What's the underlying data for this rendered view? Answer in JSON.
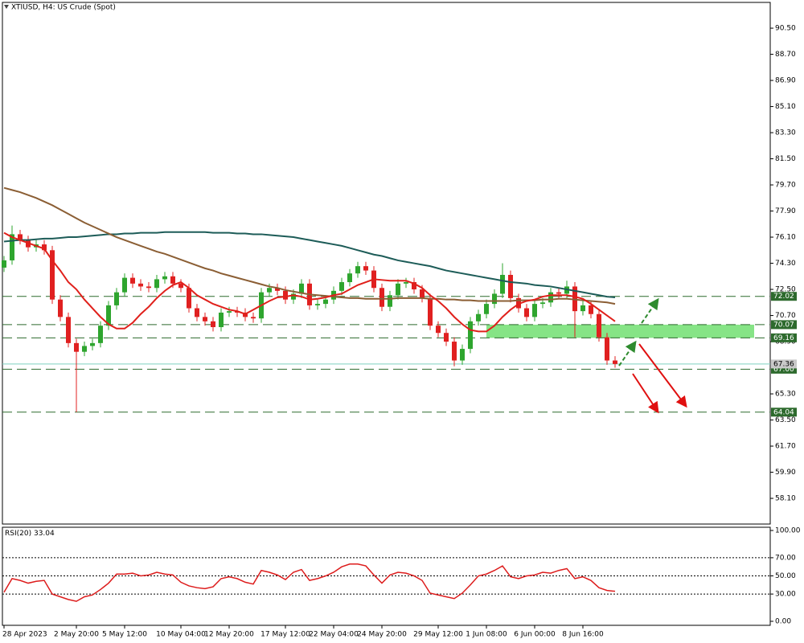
{
  "chart_data": {
    "type": "candlestick",
    "title": "XTIUSD, H4:  US Crude (Spot)",
    "categories": [
      "28 Apr 2023",
      null,
      null,
      null,
      null,
      null,
      null,
      null,
      null,
      "2 May 20:00",
      null,
      null,
      null,
      null,
      null,
      "5 May 12:00",
      null,
      null,
      null,
      null,
      null,
      null,
      "10 May 04:00",
      null,
      null,
      null,
      null,
      null,
      "12 May 20:00",
      null,
      null,
      null,
      null,
      null,
      null,
      "17 May 12:00",
      null,
      null,
      null,
      null,
      null,
      "22 May 04:00",
      null,
      null,
      null,
      null,
      null,
      "24 May 20:00",
      null,
      null,
      null,
      null,
      null,
      null,
      "29 May 12:00",
      null,
      null,
      null,
      null,
      null,
      "1 Jun 08:00",
      null,
      null,
      null,
      null,
      null,
      "6 Jun 00:00",
      null,
      null,
      null,
      null,
      null,
      "8 Jun 16:00",
      null,
      null,
      null,
      null
    ],
    "candles": [
      [
        74.0,
        74.8,
        73.7,
        74.5
      ],
      [
        74.5,
        76.9,
        74.2,
        76.3
      ],
      [
        76.3,
        76.6,
        75.6,
        75.9
      ],
      [
        75.9,
        76.2,
        75.1,
        75.4
      ],
      [
        75.4,
        75.9,
        75.1,
        75.6
      ],
      [
        75.6,
        75.9,
        74.9,
        75.2
      ],
      [
        75.2,
        75.5,
        71.5,
        71.8
      ],
      [
        71.8,
        72.1,
        70.3,
        70.6
      ],
      [
        70.6,
        70.9,
        68.5,
        68.8
      ],
      [
        68.8,
        69.1,
        64.04,
        68.2
      ],
      [
        68.2,
        68.9,
        67.9,
        68.6
      ],
      [
        68.6,
        69.1,
        68.3,
        68.8
      ],
      [
        68.8,
        70.3,
        68.5,
        70.0
      ],
      [
        70.0,
        71.7,
        69.7,
        71.4
      ],
      [
        71.4,
        72.6,
        71.1,
        72.3
      ],
      [
        72.3,
        73.6,
        72.0,
        73.3
      ],
      [
        73.3,
        73.6,
        72.6,
        72.9
      ],
      [
        72.9,
        73.2,
        72.4,
        72.7
      ],
      [
        72.7,
        73.0,
        72.3,
        72.6
      ],
      [
        72.6,
        73.5,
        72.3,
        73.2
      ],
      [
        73.2,
        73.7,
        72.9,
        73.4
      ],
      [
        73.4,
        73.7,
        72.6,
        72.9
      ],
      [
        72.9,
        73.2,
        72.3,
        72.6
      ],
      [
        72.6,
        72.9,
        70.9,
        71.2
      ],
      [
        71.2,
        71.5,
        70.3,
        70.6
      ],
      [
        70.6,
        70.9,
        70.0,
        70.3
      ],
      [
        70.3,
        70.6,
        69.6,
        69.9
      ],
      [
        69.9,
        71.2,
        69.6,
        70.9
      ],
      [
        70.9,
        71.3,
        70.6,
        71.0
      ],
      [
        71.0,
        71.3,
        70.6,
        70.9
      ],
      [
        70.9,
        71.2,
        70.3,
        70.6
      ],
      [
        70.6,
        70.9,
        70.2,
        70.5
      ],
      [
        70.5,
        72.6,
        70.2,
        72.3
      ],
      [
        72.3,
        72.9,
        72.0,
        72.6
      ],
      [
        72.6,
        72.9,
        72.1,
        72.4
      ],
      [
        72.4,
        72.7,
        71.5,
        71.8
      ],
      [
        71.8,
        72.5,
        71.5,
        72.2
      ],
      [
        72.2,
        73.2,
        71.9,
        72.9
      ],
      [
        72.9,
        73.2,
        71.1,
        71.4
      ],
      [
        71.4,
        71.8,
        71.1,
        71.5
      ],
      [
        71.5,
        72.1,
        71.2,
        71.8
      ],
      [
        71.8,
        72.7,
        71.5,
        72.4
      ],
      [
        72.4,
        73.3,
        72.1,
        73.0
      ],
      [
        73.0,
        73.9,
        72.7,
        73.6
      ],
      [
        73.6,
        74.4,
        73.3,
        74.1
      ],
      [
        74.1,
        74.4,
        73.5,
        73.8
      ],
      [
        73.8,
        74.1,
        72.3,
        72.6
      ],
      [
        72.6,
        72.9,
        71.0,
        71.3
      ],
      [
        71.3,
        72.4,
        71.0,
        72.1
      ],
      [
        72.1,
        73.2,
        71.8,
        72.9
      ],
      [
        72.9,
        73.3,
        72.6,
        73.0
      ],
      [
        73.0,
        73.3,
        72.2,
        72.5
      ],
      [
        72.5,
        72.8,
        71.6,
        71.9
      ],
      [
        71.9,
        72.2,
        69.7,
        70.0
      ],
      [
        70.0,
        70.3,
        69.2,
        69.5
      ],
      [
        69.5,
        69.8,
        68.6,
        68.9
      ],
      [
        68.9,
        69.2,
        67.2,
        67.6
      ],
      [
        67.6,
        68.7,
        67.3,
        68.4
      ],
      [
        68.4,
        70.6,
        68.1,
        70.3
      ],
      [
        70.3,
        71.1,
        70.0,
        70.8
      ],
      [
        70.8,
        71.8,
        70.5,
        71.5
      ],
      [
        71.5,
        72.5,
        71.2,
        72.2
      ],
      [
        72.2,
        74.3,
        71.9,
        73.5
      ],
      [
        73.5,
        73.8,
        71.6,
        71.9
      ],
      [
        71.9,
        72.2,
        70.9,
        71.2
      ],
      [
        71.2,
        71.5,
        70.3,
        70.6
      ],
      [
        70.6,
        71.8,
        70.3,
        71.5
      ],
      [
        71.5,
        71.9,
        71.2,
        71.6
      ],
      [
        71.6,
        72.6,
        71.3,
        72.3
      ],
      [
        72.3,
        72.6,
        71.9,
        72.2
      ],
      [
        72.2,
        73.1,
        71.9,
        72.7
      ],
      [
        72.7,
        73.0,
        69.2,
        71.0
      ],
      [
        71.0,
        71.7,
        70.7,
        71.4
      ],
      [
        71.4,
        71.7,
        70.5,
        70.8
      ],
      [
        70.8,
        71.1,
        68.9,
        69.2
      ],
      [
        69.2,
        69.5,
        67.3,
        67.6
      ],
      [
        67.6,
        67.9,
        67.1,
        67.36
      ]
    ],
    "bull_color": "#2ea52e",
    "bear_color": "#e02020",
    "ylim": [
      56.33,
      92.22
    ],
    "yticks": [
      {
        "value": 90.5,
        "label": "90.50"
      },
      {
        "value": 88.7,
        "label": "88.70"
      },
      {
        "value": 86.9,
        "label": "86.90"
      },
      {
        "value": 85.1,
        "label": "85.10"
      },
      {
        "value": 83.3,
        "label": "83.30"
      },
      {
        "value": 81.5,
        "label": "81.50"
      },
      {
        "value": 79.7,
        "label": "79.70"
      },
      {
        "value": 77.9,
        "label": "77.90"
      },
      {
        "value": 76.1,
        "label": "76.10"
      },
      {
        "value": 74.3,
        "label": "74.30"
      },
      {
        "value": 72.5,
        "label": "72.50"
      },
      {
        "value": 70.7,
        "label": "70.70"
      },
      {
        "value": 68.9,
        "label": "68.90"
      },
      {
        "value": 65.3,
        "label": "65.30"
      },
      {
        "value": 63.5,
        "label": "63.50"
      },
      {
        "value": 61.7,
        "label": "61.70"
      },
      {
        "value": 59.9,
        "label": "59.90"
      },
      {
        "value": 58.1,
        "label": "58.10"
      }
    ],
    "moving_averages": [
      {
        "color": "#1d5c58",
        "values": [
          75.8,
          75.85,
          75.9,
          75.9,
          75.95,
          76.0,
          76.0,
          76.05,
          76.1,
          76.1,
          76.15,
          76.2,
          76.25,
          76.3,
          76.3,
          76.35,
          76.35,
          76.4,
          76.4,
          76.4,
          76.45,
          76.45,
          76.45,
          76.45,
          76.45,
          76.45,
          76.4,
          76.4,
          76.4,
          76.35,
          76.35,
          76.3,
          76.3,
          76.25,
          76.2,
          76.15,
          76.1,
          76.0,
          75.9,
          75.8,
          75.7,
          75.6,
          75.5,
          75.35,
          75.2,
          75.05,
          74.9,
          74.8,
          74.65,
          74.5,
          74.4,
          74.3,
          74.2,
          74.1,
          73.95,
          73.8,
          73.7,
          73.6,
          73.5,
          73.4,
          73.3,
          73.2,
          73.1,
          73.0,
          72.95,
          72.9,
          72.8,
          72.75,
          72.7,
          72.6,
          72.5,
          72.4,
          72.3,
          72.2,
          72.1,
          72.0,
          71.95
        ]
      },
      {
        "color": "#8b5e34",
        "values": [
          79.5,
          79.35,
          79.2,
          79.0,
          78.8,
          78.55,
          78.3,
          78.0,
          77.7,
          77.4,
          77.1,
          76.85,
          76.6,
          76.35,
          76.1,
          75.9,
          75.7,
          75.5,
          75.3,
          75.1,
          74.95,
          74.75,
          74.55,
          74.35,
          74.15,
          73.95,
          73.8,
          73.6,
          73.45,
          73.3,
          73.15,
          73.0,
          72.85,
          72.7,
          72.6,
          72.45,
          72.35,
          72.25,
          72.15,
          72.1,
          72.05,
          72.0,
          71.95,
          71.9,
          71.9,
          71.85,
          71.85,
          71.85,
          71.85,
          71.9,
          71.9,
          71.9,
          71.9,
          71.85,
          71.85,
          71.8,
          71.8,
          71.75,
          71.75,
          71.7,
          71.7,
          71.7,
          71.7,
          71.7,
          71.75,
          71.75,
          71.75,
          71.8,
          71.8,
          71.85,
          71.85,
          71.8,
          71.75,
          71.7,
          71.65,
          71.6,
          71.5
        ]
      },
      {
        "color": "#e0201b",
        "values": [
          76.4,
          76.1,
          75.9,
          75.7,
          75.5,
          75.3,
          74.5,
          73.8,
          73.0,
          72.5,
          71.8,
          71.2,
          70.6,
          70.1,
          69.8,
          69.8,
          70.2,
          70.8,
          71.3,
          71.9,
          72.4,
          72.8,
          73.0,
          72.6,
          72.1,
          71.8,
          71.5,
          71.3,
          71.1,
          71.0,
          70.8,
          71.1,
          71.4,
          71.7,
          71.95,
          72.0,
          72.1,
          72.0,
          71.8,
          71.85,
          71.95,
          72.1,
          72.2,
          72.5,
          72.8,
          73.0,
          73.2,
          73.15,
          73.1,
          73.1,
          73.1,
          72.9,
          72.6,
          72.1,
          71.7,
          71.2,
          70.6,
          70.1,
          69.7,
          69.6,
          69.6,
          70.0,
          70.6,
          71.1,
          71.5,
          71.7,
          71.8,
          72.0,
          72.1,
          72.1,
          72.1,
          72.0,
          71.85,
          71.5,
          71.1,
          70.7,
          70.3
        ]
      }
    ],
    "levels": [
      72.02,
      70.07,
      69.16,
      {
        "value": 67,
        "label": "67.00"
      },
      64.04
    ],
    "level_color": "#2d6a2d",
    "zone_color": "#86e486",
    "bid": 67.36,
    "rsi": {
      "label": "RSI(20)",
      "color": "#dd1c1c",
      "values": [
        32,
        47,
        45,
        42,
        44,
        45,
        30,
        27,
        24,
        22,
        27,
        29,
        35,
        42,
        52,
        52,
        53,
        50,
        51,
        54,
        52,
        51,
        43,
        39,
        37,
        36,
        38,
        47,
        49,
        47,
        43,
        41,
        56,
        54,
        51,
        46,
        54,
        57,
        45,
        47,
        50,
        54,
        60,
        63,
        63,
        61,
        51,
        42,
        51,
        54,
        53,
        50,
        45,
        31,
        29,
        27,
        25,
        31,
        40,
        50,
        52,
        56,
        61,
        49,
        47,
        50,
        51,
        54,
        53,
        56,
        58,
        47,
        49,
        45,
        37,
        34,
        33.04
      ],
      "ylim": [
        0,
        100
      ],
      "yticks": [
        {
          "value": 100,
          "label": "100.00"
        },
        {
          "value": 70,
          "label": "70.00"
        },
        {
          "value": 50,
          "label": "50.00"
        },
        {
          "value": 30,
          "label": "30.00"
        },
        {
          "value": 0,
          "label": "0.00"
        }
      ],
      "levels": [
        70,
        50,
        30
      ]
    }
  }
}
